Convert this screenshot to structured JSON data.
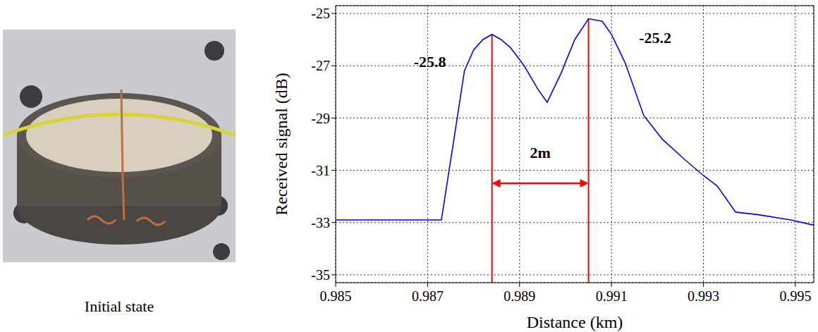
{
  "chart_data": {
    "type": "line",
    "xlabel": "Distance (km)",
    "ylabel": "Received signal (dB)",
    "x": [
      0.985,
      0.9873,
      0.9876,
      0.9878,
      0.988,
      0.9882,
      0.9884,
      0.9886,
      0.9888,
      0.9891,
      0.9894,
      0.9896,
      0.9899,
      0.9902,
      0.9905,
      0.9908,
      0.991,
      0.9913,
      0.9917,
      0.9921,
      0.9926,
      0.993,
      0.9933,
      0.9937,
      0.9942,
      0.9949,
      0.9954
    ],
    "values": [
      -32.9,
      -32.9,
      -29.5,
      -27.2,
      -26.4,
      -26.0,
      -25.8,
      -26.0,
      -26.3,
      -27.0,
      -27.9,
      -28.4,
      -27.3,
      -26.0,
      -25.2,
      -25.3,
      -25.8,
      -26.9,
      -28.9,
      -29.8,
      -30.6,
      -31.2,
      -31.6,
      -32.6,
      -32.7,
      -32.9,
      -33.1
    ],
    "color": "#0000ff",
    "xlim": [
      0.985,
      0.9954
    ],
    "xticks": [
      0.985,
      0.987,
      0.989,
      0.991,
      0.993,
      0.995
    ],
    "ylim": [
      -35.3,
      -24.7
    ],
    "yticks": [
      -35,
      -33,
      -31,
      -29,
      -27,
      -25
    ],
    "grid": true,
    "markers": [
      {
        "x": 0.9884,
        "y": -25.8,
        "color": "#ff0000"
      },
      {
        "x": 0.9905,
        "y": -25.2,
        "color": "#ff0000"
      }
    ],
    "arrow": {
      "x": [
        0.9884,
        0.9905
      ],
      "y": -31.5,
      "color": "#ff0000"
    },
    "annotations": [
      {
        "text": "-25.8",
        "x": 0.9874,
        "y": -26.9
      },
      {
        "text": "-25.2",
        "x": 0.9916,
        "y": -26.0
      },
      {
        "text": "2m",
        "x": 0.98945,
        "y": -30.4
      }
    ]
  },
  "image": {
    "caption": "Initial state"
  }
}
